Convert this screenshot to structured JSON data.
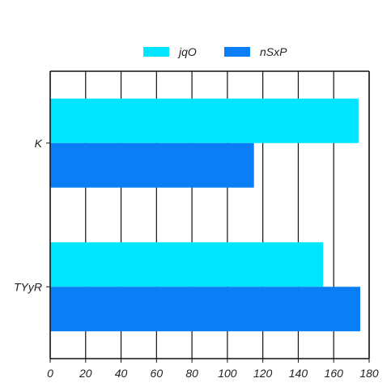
{
  "chart_data": {
    "type": "bar",
    "orientation": "horizontal",
    "categories": [
      "K",
      "TYyR"
    ],
    "series": [
      {
        "name": "jqO",
        "values": [
          174,
          154
        ],
        "color": "#00e5ff"
      },
      {
        "name": "nSxP",
        "values": [
          115,
          175
        ],
        "color": "#0a7ff5"
      }
    ],
    "xlim": [
      0,
      180
    ],
    "xticks": [
      0,
      20,
      40,
      60,
      80,
      100,
      120,
      140,
      160,
      180
    ],
    "grid": true,
    "legend_position": "top-center",
    "title": "",
    "xlabel": "",
    "ylabel": ""
  }
}
